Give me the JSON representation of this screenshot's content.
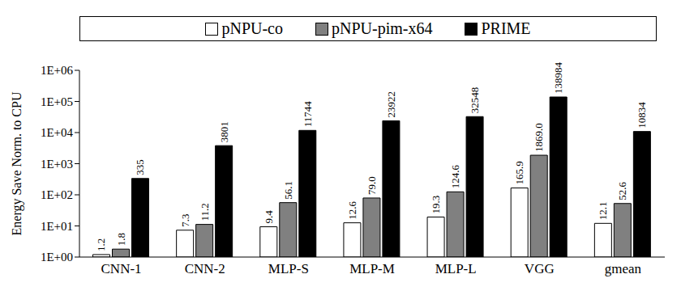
{
  "chart_data": {
    "type": "bar",
    "y_label": "Energy Save Norm. to CPU",
    "categories": [
      "CNN-1",
      "CNN-2",
      "MLP-S",
      "MLP-M",
      "MLP-L",
      "VGG",
      "gmean"
    ],
    "series": [
      {
        "name": "pNPU-co",
        "color": "#ffffff",
        "values": [
          1.2,
          7.3,
          9.4,
          12.6,
          19.3,
          165.9,
          12.1
        ]
      },
      {
        "name": "pNPU-pim-x64",
        "color": "#808080",
        "values": [
          1.8,
          11.2,
          56.1,
          79.0,
          124.6,
          1869.0,
          52.6
        ],
        "value_labels": [
          "1.8",
          "11.2",
          "56.1",
          "79.0",
          "124.6",
          "1869.0",
          "52.6"
        ]
      },
      {
        "name": "PRIME",
        "color": "#000000",
        "values": [
          335,
          3801,
          11744,
          23922,
          32548,
          138984,
          10834
        ]
      }
    ],
    "log": "y",
    "ylim": [
      1,
      1000000
    ],
    "yticks": [
      {
        "value": 1,
        "label": "1E+00"
      },
      {
        "value": 10,
        "label": "1E+01"
      },
      {
        "value": 100,
        "label": "1E+02"
      },
      {
        "value": 1000,
        "label": "1E+03"
      },
      {
        "value": 10000,
        "label": "1E+04"
      },
      {
        "value": 100000,
        "label": "1E+05"
      },
      {
        "value": 1000000,
        "label": "1E+06"
      }
    ],
    "grid": false,
    "legend": "top",
    "data_labels": true
  }
}
